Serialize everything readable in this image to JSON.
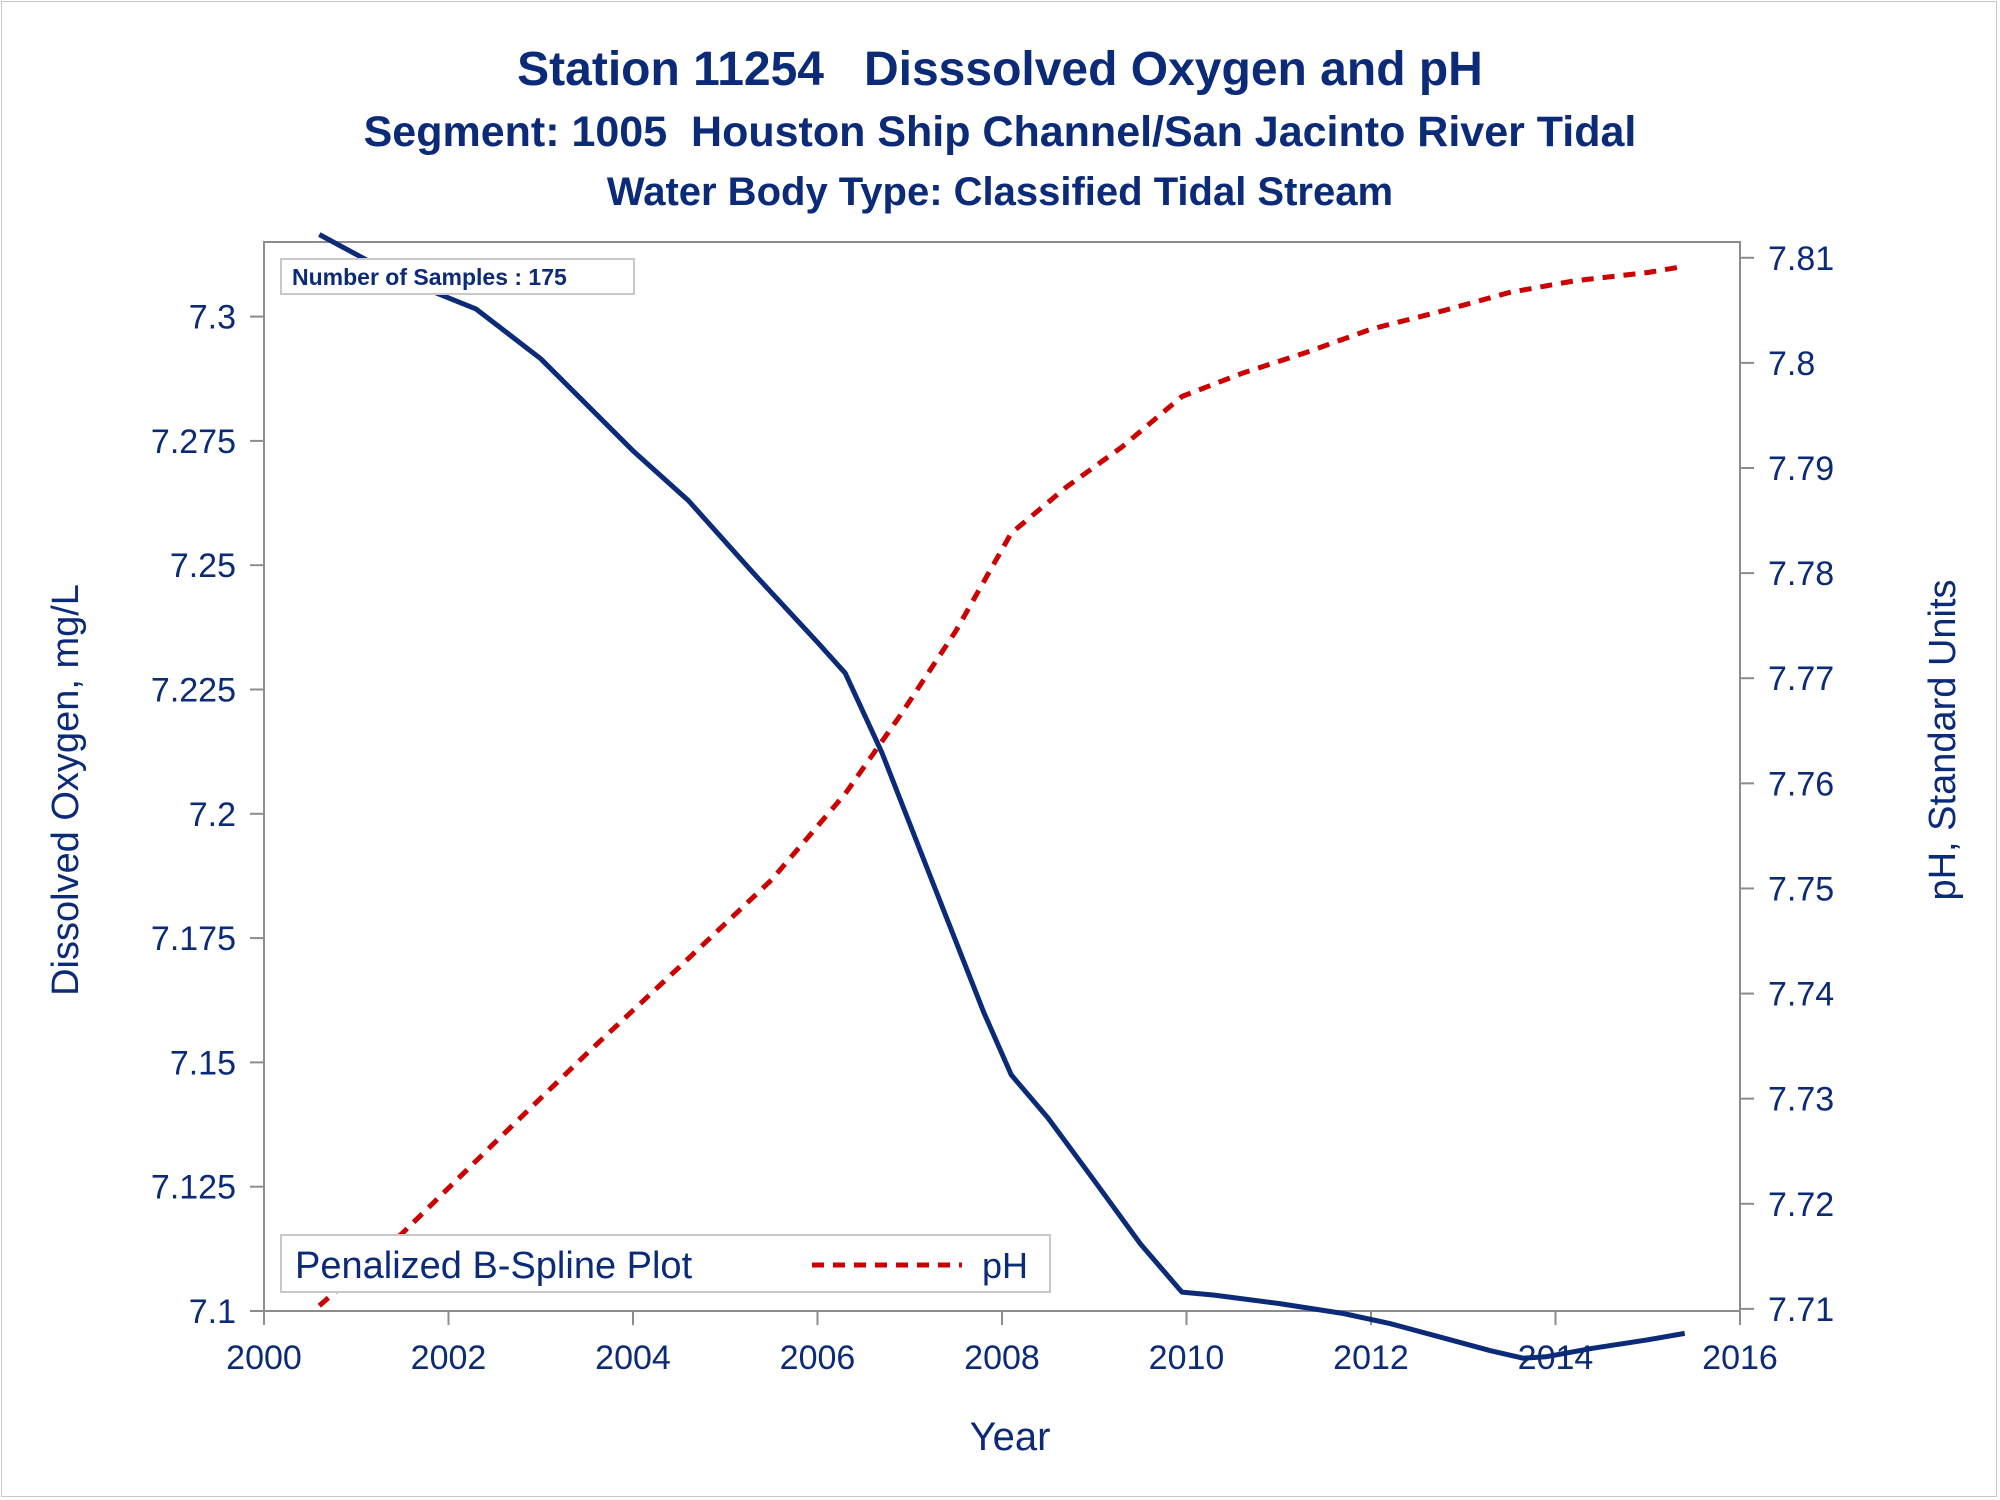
{
  "titles": {
    "line1": "Station 11254   Disssolved Oxygen and pH",
    "line2": "Segment: 1005  Houston Ship Channel/San Jacinto River Tidal",
    "line3": "Water Body Type: Classified Tidal Stream"
  },
  "colors": {
    "text": "#0b2a78",
    "do_line": "#0b2a78",
    "ph_line": "#cc0000",
    "axis": "#8c8c8c",
    "frame": "#c8c8c8"
  },
  "chart_data": {
    "type": "line",
    "xlabel": "Year",
    "ylabel_left": "Dissolved Oxygen, mg/L",
    "ylabel_right": "pH, Standard Units",
    "xlim": [
      2000,
      2016
    ],
    "ylim_left": [
      7.1,
      7.315
    ],
    "ylim_right": [
      7.7098,
      7.8115
    ],
    "x_ticks": [
      2000,
      2002,
      2004,
      2006,
      2008,
      2010,
      2012,
      2014,
      2016
    ],
    "y_ticks_left": [
      "7.1",
      "7.125",
      "7.15",
      "7.175",
      "7.2",
      "7.225",
      "7.25",
      "7.275",
      "7.3"
    ],
    "y_ticks_right": [
      "7.71",
      "7.72",
      "7.73",
      "7.74",
      "7.75",
      "7.76",
      "7.77",
      "7.78",
      "7.79",
      "7.8",
      "7.81"
    ],
    "annotation": "Number of Samples : 175",
    "legend": {
      "position": "bottom-left",
      "title": "Penalized B-Spline Plot",
      "entries": [
        {
          "label": "pH",
          "series": "pH"
        }
      ]
    },
    "grid": false,
    "series": [
      {
        "id": "DO",
        "axis": "left",
        "style": "solid",
        "x": [
          2000.6,
          2001.5,
          2002.3,
          2003.0,
          2004.0,
          2004.6,
          2005.3,
          2006.0,
          2006.3,
          2006.7,
          2007.2,
          2007.8,
          2008.1,
          2008.5,
          2009.0,
          2009.5,
          2009.95,
          2010.3,
          2011.0,
          2011.7,
          2012.2,
          2012.8,
          2013.3,
          2013.65,
          2013.9,
          2014.4,
          2015.0,
          2015.4
        ],
        "values": [
          7.3165,
          7.3075,
          7.3015,
          7.2915,
          7.273,
          7.263,
          7.2485,
          7.2345,
          7.2283,
          7.2122,
          7.1885,
          7.1602,
          7.1475,
          7.1388,
          7.1262,
          7.1135,
          7.1038,
          7.1032,
          7.1015,
          7.0995,
          7.0975,
          7.0945,
          7.092,
          7.0905,
          7.0908,
          7.0925,
          7.0942,
          7.0955
        ]
      },
      {
        "id": "pH",
        "axis": "right",
        "style": "dashed",
        "x": [
          2000.6,
          2001.5,
          2002.5,
          2003.5,
          2004.5,
          2005.5,
          2006.3,
          2006.9,
          2007.5,
          2008.1,
          2008.7,
          2009.3,
          2009.95,
          2010.6,
          2011.3,
          2012.0,
          2012.8,
          2013.5,
          2014.2,
          2015.0,
          2015.4
        ],
        "values": [
          7.7103,
          7.7172,
          7.7258,
          7.7343,
          7.7425,
          7.7508,
          7.759,
          7.7665,
          7.7745,
          7.7838,
          7.7882,
          7.792,
          7.7968,
          7.799,
          7.801,
          7.8032,
          7.805,
          7.8067,
          7.8078,
          7.8086,
          7.8092
        ]
      }
    ]
  }
}
